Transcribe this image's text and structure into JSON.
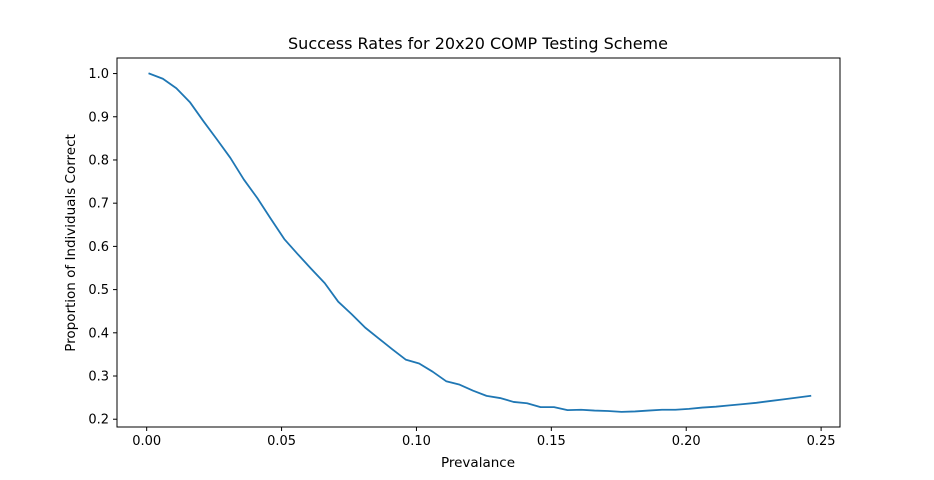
{
  "chart_data": {
    "type": "line",
    "title": "Success Rates for 20x20 COMP Testing Scheme",
    "xlabel": "Prevalance",
    "ylabel": "Proportion of Individuals Correct",
    "xlim": [
      -0.011,
      0.257
    ],
    "ylim": [
      0.182,
      1.036
    ],
    "xticks": [
      0.0,
      0.05,
      0.1,
      0.15,
      0.2,
      0.25
    ],
    "xtick_labels": [
      "0.00",
      "0.05",
      "0.10",
      "0.15",
      "0.20",
      "0.25"
    ],
    "yticks": [
      0.2,
      0.3,
      0.4,
      0.5,
      0.6,
      0.7,
      0.8,
      0.9,
      1.0
    ],
    "ytick_labels": [
      "0.2",
      "0.3",
      "0.4",
      "0.5",
      "0.6",
      "0.7",
      "0.8",
      "0.9",
      "1.0"
    ],
    "grid": false,
    "series": [
      {
        "color": "#1f77b4",
        "x": [
          0.001,
          0.006,
          0.011,
          0.016,
          0.021,
          0.026,
          0.031,
          0.036,
          0.041,
          0.046,
          0.051,
          0.056,
          0.061,
          0.066,
          0.071,
          0.076,
          0.081,
          0.086,
          0.091,
          0.096,
          0.101,
          0.106,
          0.111,
          0.116,
          0.121,
          0.126,
          0.131,
          0.136,
          0.141,
          0.146,
          0.151,
          0.156,
          0.161,
          0.166,
          0.171,
          0.176,
          0.181,
          0.186,
          0.191,
          0.196,
          0.201,
          0.206,
          0.211,
          0.216,
          0.221,
          0.226,
          0.231,
          0.236,
          0.241,
          0.246
        ],
        "y": [
          1.0,
          0.988,
          0.966,
          0.934,
          0.89,
          0.848,
          0.805,
          0.755,
          0.712,
          0.664,
          0.617,
          0.582,
          0.548,
          0.515,
          0.472,
          0.443,
          0.412,
          0.387,
          0.362,
          0.338,
          0.329,
          0.31,
          0.288,
          0.28,
          0.266,
          0.254,
          0.249,
          0.24,
          0.237,
          0.228,
          0.228,
          0.221,
          0.222,
          0.22,
          0.219,
          0.217,
          0.218,
          0.22,
          0.222,
          0.222,
          0.224,
          0.227,
          0.229,
          0.232,
          0.235,
          0.238,
          0.242,
          0.246,
          0.25,
          0.254
        ]
      }
    ]
  }
}
